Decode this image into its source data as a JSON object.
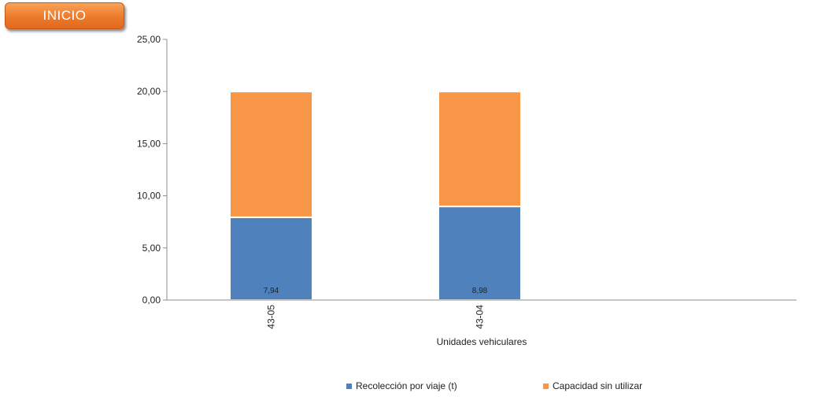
{
  "nav": {
    "inicio_label": "INICIO"
  },
  "chart_data": {
    "type": "bar",
    "stacked": true,
    "categories": [
      "43-05",
      "43-04"
    ],
    "series": [
      {
        "name": "Recolección por viaje (t)",
        "values": [
          7.94,
          8.98
        ],
        "color": "#4f81bd"
      },
      {
        "name": "Capacidad sin utilizar",
        "values": [
          12.06,
          11.02
        ],
        "color": "#f79646"
      }
    ],
    "data_labels": [
      "7,94",
      "8,98"
    ],
    "xlabel": "Unidades vehiculares",
    "ylabel": "",
    "ylim": [
      0,
      25
    ],
    "yticks": [
      "0,00",
      "5,00",
      "10,00",
      "15,00",
      "20,00",
      "25,00"
    ],
    "legend_position": "bottom",
    "grid": false
  }
}
